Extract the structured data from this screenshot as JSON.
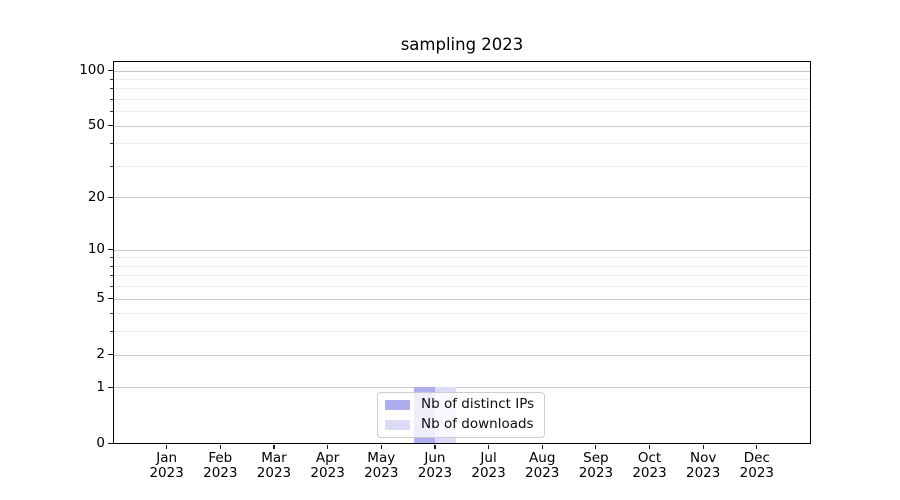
{
  "chart_data": {
    "type": "bar",
    "title": "sampling 2023",
    "categories": [
      "Jan 2023",
      "Feb 2023",
      "Mar 2023",
      "Apr 2023",
      "May 2023",
      "Jun 2023",
      "Jul 2023",
      "Aug 2023",
      "Sep 2023",
      "Oct 2023",
      "Nov 2023",
      "Dec 2023"
    ],
    "series": [
      {
        "name": "Nb of distinct IPs",
        "color": "#adadf0",
        "values": [
          0,
          0,
          0,
          0,
          0,
          1,
          0,
          0,
          0,
          0,
          0,
          0
        ]
      },
      {
        "name": "Nb of downloads",
        "color": "#dcdcf7",
        "values": [
          0,
          0,
          0,
          0,
          0,
          1,
          0,
          0,
          0,
          0,
          0,
          0
        ]
      }
    ],
    "xlabel": "",
    "ylabel": "",
    "yscale": "symlog",
    "ylim": [
      0,
      112.6
    ],
    "yticks_major": [
      0,
      1,
      2,
      5,
      10,
      20,
      50,
      100
    ],
    "yticks_minor": [
      3,
      4,
      6,
      7,
      8,
      9,
      30,
      40,
      60,
      70,
      80,
      90
    ],
    "grid": "horizontal",
    "legend": {
      "position": "lower center",
      "entries": [
        "Nb of distinct IPs",
        "Nb of downloads"
      ]
    },
    "colors": {
      "spine": "#000000",
      "grid_major": "#c9c9c9",
      "grid_minor": "#ececec",
      "text": "#000000",
      "background": "#ffffff"
    }
  }
}
